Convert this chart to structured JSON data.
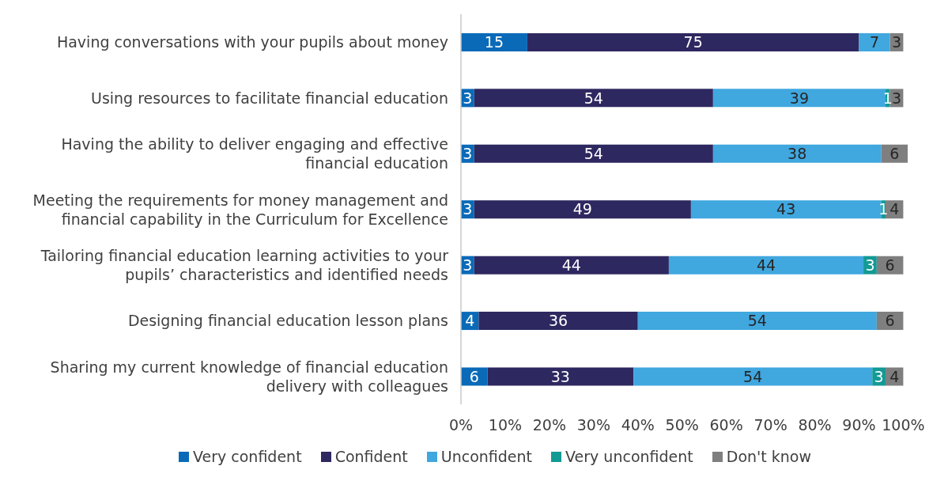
{
  "chart_data": {
    "type": "bar",
    "orientation": "horizontal",
    "stacked": true,
    "categories": [
      "Having conversations with your pupils about money",
      "Using resources to facilitate financial education",
      "Having the ability to deliver engaging and effective\nfinancial education",
      "Meeting the requirements for money management and\nfinancial capability in the Curriculum for Excellence",
      "Tailoring financial education learning activities to your\npupils’ characteristics and identified needs",
      "Designing financial education lesson plans",
      "Sharing my current knowledge of financial education\ndelivery with colleagues"
    ],
    "series": [
      {
        "name": "Very confident",
        "color": "#0a6ab8",
        "values": [
          15,
          3,
          3,
          3,
          3,
          4,
          6
        ]
      },
      {
        "name": "Confident",
        "color": "#2e2860",
        "values": [
          75,
          54,
          54,
          49,
          44,
          36,
          33
        ]
      },
      {
        "name": "Unconfident",
        "color": "#40a7df",
        "values": [
          7,
          39,
          38,
          43,
          44,
          54,
          54
        ]
      },
      {
        "name": "Very unconfident",
        "color": "#139a95",
        "values": [
          null,
          1,
          null,
          1,
          3,
          null,
          3
        ]
      },
      {
        "name": "Don't know",
        "color": "#7f7f7f",
        "values": [
          3,
          3,
          6,
          4,
          6,
          6,
          4
        ]
      }
    ],
    "xlim": [
      0,
      101
    ],
    "xticks": [
      {
        "value": 0,
        "label": "0%"
      },
      {
        "value": 10,
        "label": "10%"
      },
      {
        "value": 20,
        "label": "20%"
      },
      {
        "value": 30,
        "label": "30%"
      },
      {
        "value": 40,
        "label": "40%"
      },
      {
        "value": 50,
        "label": "50%"
      },
      {
        "value": 60,
        "label": "60%"
      },
      {
        "value": 70,
        "label": "70%"
      },
      {
        "value": 80,
        "label": "80%"
      },
      {
        "value": 90,
        "label": "90%"
      },
      {
        "value": 100,
        "label": "100%"
      }
    ],
    "data_labels": true,
    "grid": false,
    "legend": "bottom"
  }
}
